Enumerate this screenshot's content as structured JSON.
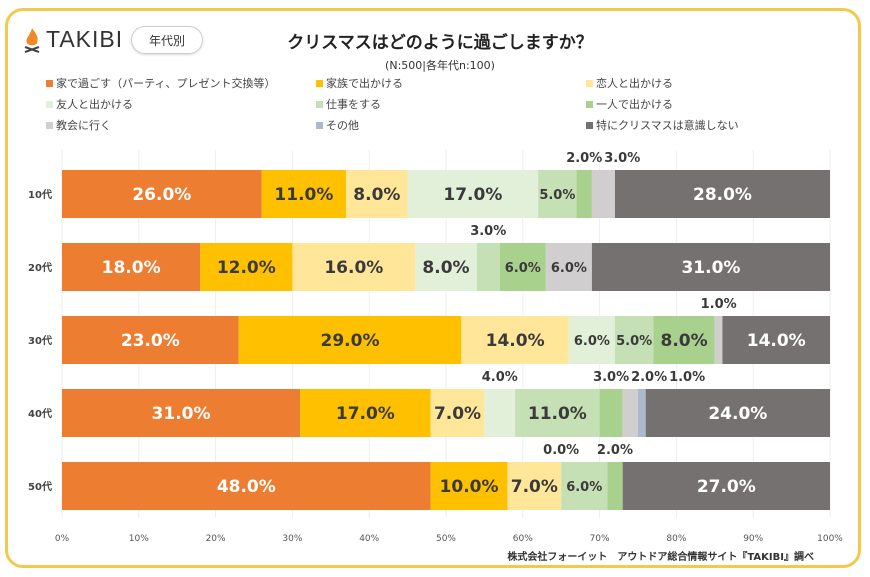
{
  "brand": {
    "name": "TAKIBI",
    "badge": "年代別"
  },
  "footer": "株式会社フォーイット　アウトドア総合情報サイト『TAKIBI』調べ",
  "chart_data": {
    "type": "bar",
    "orientation": "horizontal-stacked-100",
    "title": "クリスマスはどのように過ごしますか？",
    "subtitle": "(N:500|各年代n:100)",
    "categories": [
      "10代",
      "20代",
      "30代",
      "40代",
      "50代"
    ],
    "xlim": [
      0,
      100
    ],
    "xticks": [
      "0%",
      "10%",
      "20%",
      "30%",
      "40%",
      "50%",
      "60%",
      "70%",
      "80%",
      "90%",
      "100%"
    ],
    "grid": true,
    "legend_position": "top",
    "series": [
      {
        "name": "家で過ごす（パーティ、プレゼント交換等）",
        "color": "#ED7D31",
        "values": [
          26,
          18,
          23,
          31,
          48
        ],
        "labels": [
          "26.0%",
          "18.0%",
          "23.0%",
          "31.0%",
          "48.0%"
        ]
      },
      {
        "name": "家族で出かける",
        "color": "#FFC000",
        "values": [
          11,
          12,
          29,
          17,
          10
        ],
        "labels": [
          "11.0%",
          "12.0%",
          "29.0%",
          "17.0%",
          "10.0%"
        ]
      },
      {
        "name": "恋人と出かける",
        "color": "#FFE699",
        "values": [
          8,
          16,
          14,
          7,
          7
        ],
        "labels": [
          "8.0%",
          "16.0%",
          "14.0%",
          "7.0%",
          "7.0%"
        ]
      },
      {
        "name": "友人と出かける",
        "color": "#E2F0D9",
        "values": [
          17,
          8,
          6,
          4,
          0
        ],
        "labels": [
          "17.0%",
          "8.0%",
          "6.0%",
          "4.0%",
          "0.0%"
        ]
      },
      {
        "name": "仕事をする",
        "color": "#C5E0B4",
        "values": [
          5,
          3,
          5,
          11,
          6
        ],
        "labels": [
          "5.0%",
          "3.0%",
          "5.0%",
          "11.0%",
          "6.0%"
        ]
      },
      {
        "name": "一人で出かける",
        "color": "#A9D18E",
        "values": [
          2,
          6,
          8,
          3,
          2
        ],
        "labels": [
          "2.0%",
          "6.0%",
          "8.0%",
          "3.0%",
          "2.0%"
        ]
      },
      {
        "name": "教会に行く",
        "color": "#D0CECE",
        "values": [
          3,
          6,
          1,
          2,
          0
        ],
        "labels": [
          "3.0%",
          "6.0%",
          "1.0%",
          "2.0%",
          null
        ]
      },
      {
        "name": "その他",
        "color": "#ADB9CA",
        "values": [
          0,
          0,
          0,
          1,
          0
        ],
        "labels": [
          null,
          null,
          null,
          "1.0%",
          null
        ]
      },
      {
        "name": "特にクリスマスは意識しない",
        "color": "#767171",
        "values": [
          28,
          31,
          14,
          24,
          27
        ],
        "labels": [
          "28.0%",
          "31.0%",
          "14.0%",
          "24.0%",
          "27.0%"
        ]
      }
    ]
  }
}
